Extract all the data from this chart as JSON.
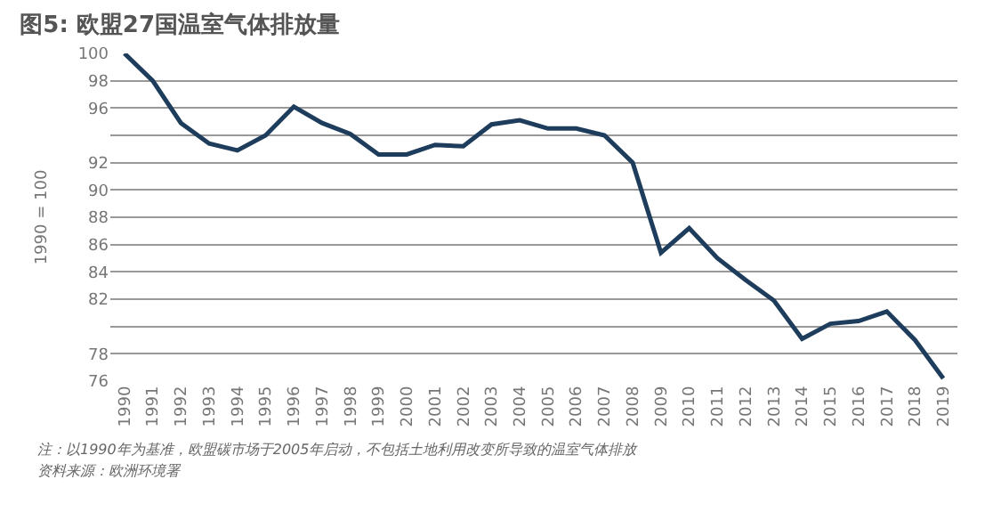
{
  "chart_data": {
    "type": "line",
    "title": "图5: 欧盟27国温室气体排放量",
    "ylabel": "1990 = 100",
    "categories": [
      "1990",
      "1991",
      "1992",
      "1993",
      "1994",
      "1995",
      "1996",
      "1997",
      "1998",
      "1999",
      "2000",
      "2001",
      "2002",
      "2003",
      "2004",
      "2005",
      "2006",
      "2007",
      "2008",
      "2009",
      "2010",
      "2011",
      "2012",
      "2013",
      "2014",
      "2015",
      "2016",
      "2017",
      "2018",
      "2019"
    ],
    "series": [
      {
        "color": "#1e3d5c",
        "values": [
          100,
          98,
          94.9,
          93.4,
          92.9,
          94,
          96.1,
          94.9,
          94.1,
          92.6,
          92.6,
          93.3,
          93.2,
          94.8,
          95.1,
          94.5,
          94.5,
          94,
          92,
          85.4,
          87.2,
          85,
          83.4,
          81.9,
          79.1,
          80.2,
          80.4,
          81.1,
          79,
          76.2
        ]
      }
    ],
    "ylim": [
      76,
      100
    ],
    "yticks": [
      100,
      98,
      96,
      {
        "value": 94,
        "label": null
      },
      92,
      90,
      88,
      86,
      84,
      82,
      {
        "value": 80,
        "label": null
      },
      78,
      76
    ],
    "grid": "y",
    "marker": "none",
    "line_style": "solid",
    "annotations": [
      "注：以1990年为基准，欧盟碳市场于2005年启动，不包括土地利用改变所导致的温室气体排放",
      "资料来源：欧洲环境署"
    ]
  }
}
